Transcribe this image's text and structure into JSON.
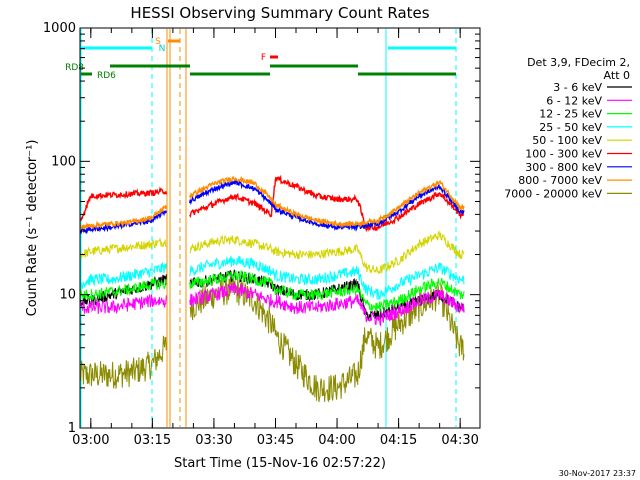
{
  "chart_data": {
    "type": "line",
    "title": "HESSI Observing Summary Count Rates",
    "xlabel": "Start Time (15-Nov-16 02:57:22)",
    "ylabel": "Count Rate (s⁻¹ detector⁻¹)",
    "yscale": "log",
    "ylim": [
      1,
      1000
    ],
    "xlim": [
      "02:57:22",
      "04:34:50"
    ],
    "x_ticks": [
      "03:00",
      "03:15",
      "03:30",
      "03:45",
      "04:00",
      "04:15",
      "04:30"
    ],
    "y_ticks": [
      "1",
      "10",
      "100",
      "1000"
    ],
    "timestamp": "30-Nov-2017 23:37",
    "legend": {
      "placement": "right",
      "header": [
        "Det 3,9, FDecim 2,",
        "Att 0"
      ],
      "entries": [
        {
          "label": "3 - 6 keV",
          "color": "#000000"
        },
        {
          "label": "6 - 12 keV",
          "color": "#ff00ff"
        },
        {
          "label": "12 - 25 keV",
          "color": "#00ff00"
        },
        {
          "label": "25 - 50 keV",
          "color": "#00ffff"
        },
        {
          "label": "50 - 100 keV",
          "color": "#d4d400"
        },
        {
          "label": "100 - 300 keV",
          "color": "#ff0000"
        },
        {
          "label": "300 - 800 keV",
          "color": "#0000ff"
        },
        {
          "label": "800 - 7000 keV",
          "color": "#ff8c00"
        },
        {
          "label": "7000 - 20000 keV",
          "color": "#8b8b00"
        }
      ]
    },
    "flags": [
      {
        "label": "S",
        "color": "#ff8c00",
        "start": "03:19:30",
        "end": "03:21:40"
      },
      {
        "label": "N",
        "color": "#00cccc",
        "start": "03:18:50",
        "end": "03:19:10"
      },
      {
        "label": "F",
        "color": "#ff0000",
        "start": "03:46:00",
        "end": "03:47:30"
      },
      {
        "label": "RD8",
        "color": "#008000",
        "start": "02:57:22",
        "end": "03:18:00"
      },
      {
        "label": "RD6",
        "color": "#008000",
        "start": "02:57:22",
        "end": "03:00:00"
      }
    ],
    "series": [
      {
        "name": "3 - 6 keV",
        "x": [
          "02:57:22",
          "03:00",
          "03:05",
          "03:10",
          "03:15",
          "03:18",
          "03:24",
          "03:30",
          "03:35",
          "03:40",
          "03:44",
          "03:45",
          "03:50",
          "03:55",
          "04:00",
          "04:05",
          "04:07",
          "04:10",
          "04:15",
          "04:20",
          "04:25",
          "04:30"
        ],
        "y": [
          9,
          9,
          10,
          11,
          12,
          13,
          12,
          13,
          14,
          13,
          12,
          11,
          10,
          10,
          11,
          12,
          7,
          7,
          8,
          9,
          10,
          8
        ]
      },
      {
        "name": "6 - 12 keV",
        "x": [
          "02:57:22",
          "03:00",
          "03:05",
          "03:10",
          "03:15",
          "03:18",
          "03:24",
          "03:30",
          "03:35",
          "03:40",
          "03:44",
          "03:45",
          "03:50",
          "03:55",
          "04:00",
          "04:05",
          "04:07",
          "04:10",
          "04:15",
          "04:20",
          "04:25",
          "04:30"
        ],
        "y": [
          8,
          8,
          8,
          8.5,
          9,
          9,
          9,
          10,
          11,
          10,
          9,
          9,
          8,
          8,
          8.5,
          9,
          7,
          6.5,
          7.5,
          9,
          10,
          8
        ]
      },
      {
        "name": "12 - 25 keV",
        "x": [
          "02:57:22",
          "03:00",
          "03:05",
          "03:10",
          "03:15",
          "03:18",
          "03:24",
          "03:30",
          "03:35",
          "03:40",
          "03:44",
          "03:45",
          "03:50",
          "03:55",
          "04:00",
          "04:05",
          "04:07",
          "04:10",
          "04:15",
          "04:20",
          "04:25",
          "04:30"
        ],
        "y": [
          10,
          10,
          10.5,
          11,
          12,
          12,
          12,
          13,
          14,
          13,
          12,
          11,
          10,
          10,
          10.5,
          11,
          8.5,
          8,
          9,
          11,
          12.5,
          10
        ]
      },
      {
        "name": "25 - 50 keV",
        "x": [
          "02:57:22",
          "03:00",
          "03:05",
          "03:10",
          "03:15",
          "03:18",
          "03:24",
          "03:30",
          "03:35",
          "03:40",
          "03:44",
          "03:45",
          "03:50",
          "03:55",
          "04:00",
          "04:05",
          "04:07",
          "04:10",
          "04:15",
          "04:20",
          "04:25",
          "04:30"
        ],
        "y": [
          12,
          13,
          13,
          14,
          15,
          16,
          15,
          17,
          18,
          17,
          15,
          14,
          13,
          13,
          14,
          15,
          11,
          10,
          12,
          14,
          16,
          13
        ]
      },
      {
        "name": "50 - 100 keV",
        "x": [
          "02:57:22",
          "03:00",
          "03:05",
          "03:10",
          "03:15",
          "03:18",
          "03:24",
          "03:30",
          "03:35",
          "03:40",
          "03:44",
          "03:45",
          "03:50",
          "03:55",
          "04:00",
          "04:05",
          "04:07",
          "04:10",
          "04:15",
          "04:20",
          "04:25",
          "04:30"
        ],
        "y": [
          20,
          21,
          22,
          23,
          24,
          25,
          22,
          25,
          26,
          24,
          22,
          21,
          20,
          20,
          21,
          22,
          16,
          15,
          18,
          24,
          28,
          20
        ]
      },
      {
        "name": "100 - 300 keV",
        "x": [
          "02:57:22",
          "03:00",
          "03:05",
          "03:10",
          "03:15",
          "03:18",
          "03:24",
          "03:30",
          "03:35",
          "03:40",
          "03:44",
          "03:45",
          "03:50",
          "03:55",
          "04:00",
          "04:05",
          "04:07",
          "04:10",
          "04:15",
          "04:20",
          "04:25",
          "04:30"
        ],
        "y": [
          35,
          55,
          56,
          57,
          58,
          60,
          40,
          48,
          55,
          48,
          40,
          75,
          65,
          55,
          52,
          52,
          32,
          32,
          38,
          48,
          58,
          40
        ]
      },
      {
        "name": "300 - 800 keV",
        "x": [
          "02:57:22",
          "03:00",
          "03:05",
          "03:10",
          "03:15",
          "03:18",
          "03:24",
          "03:30",
          "03:35",
          "03:40",
          "03:44",
          "03:45",
          "03:50",
          "03:55",
          "04:00",
          "04:05",
          "04:07",
          "04:10",
          "04:15",
          "04:20",
          "04:25",
          "04:30"
        ],
        "y": [
          30,
          31,
          32,
          34,
          36,
          42,
          50,
          62,
          70,
          62,
          48,
          44,
          38,
          34,
          32,
          32,
          33,
          34,
          42,
          55,
          65,
          42
        ]
      },
      {
        "name": "800 - 7000 keV",
        "x": [
          "02:57:22",
          "03:00",
          "03:05",
          "03:10",
          "03:15",
          "03:18",
          "03:24",
          "03:30",
          "03:35",
          "03:40",
          "03:44",
          "03:45",
          "03:50",
          "03:55",
          "04:00",
          "04:05",
          "04:07",
          "04:10",
          "04:15",
          "04:20",
          "04:25",
          "04:30"
        ],
        "y": [
          32,
          33,
          34,
          35,
          38,
          45,
          55,
          68,
          75,
          68,
          52,
          47,
          40,
          36,
          34,
          34,
          35,
          36,
          45,
          58,
          70,
          45
        ]
      },
      {
        "name": "7000 - 20000 keV",
        "x": [
          "02:57:22",
          "03:00",
          "03:05",
          "03:10",
          "03:15",
          "03:18",
          "03:24",
          "03:30",
          "03:35",
          "03:40",
          "03:44",
          "03:45",
          "03:50",
          "03:55",
          "04:00",
          "04:05",
          "04:07",
          "04:10",
          "04:15",
          "04:20",
          "04:25",
          "04:30"
        ],
        "y": [
          2.5,
          2.5,
          2.5,
          2.6,
          3,
          4,
          8,
          10,
          11,
          9,
          6,
          5,
          3,
          2,
          2,
          2.5,
          5,
          4,
          6,
          8,
          10,
          4
        ]
      }
    ]
  }
}
